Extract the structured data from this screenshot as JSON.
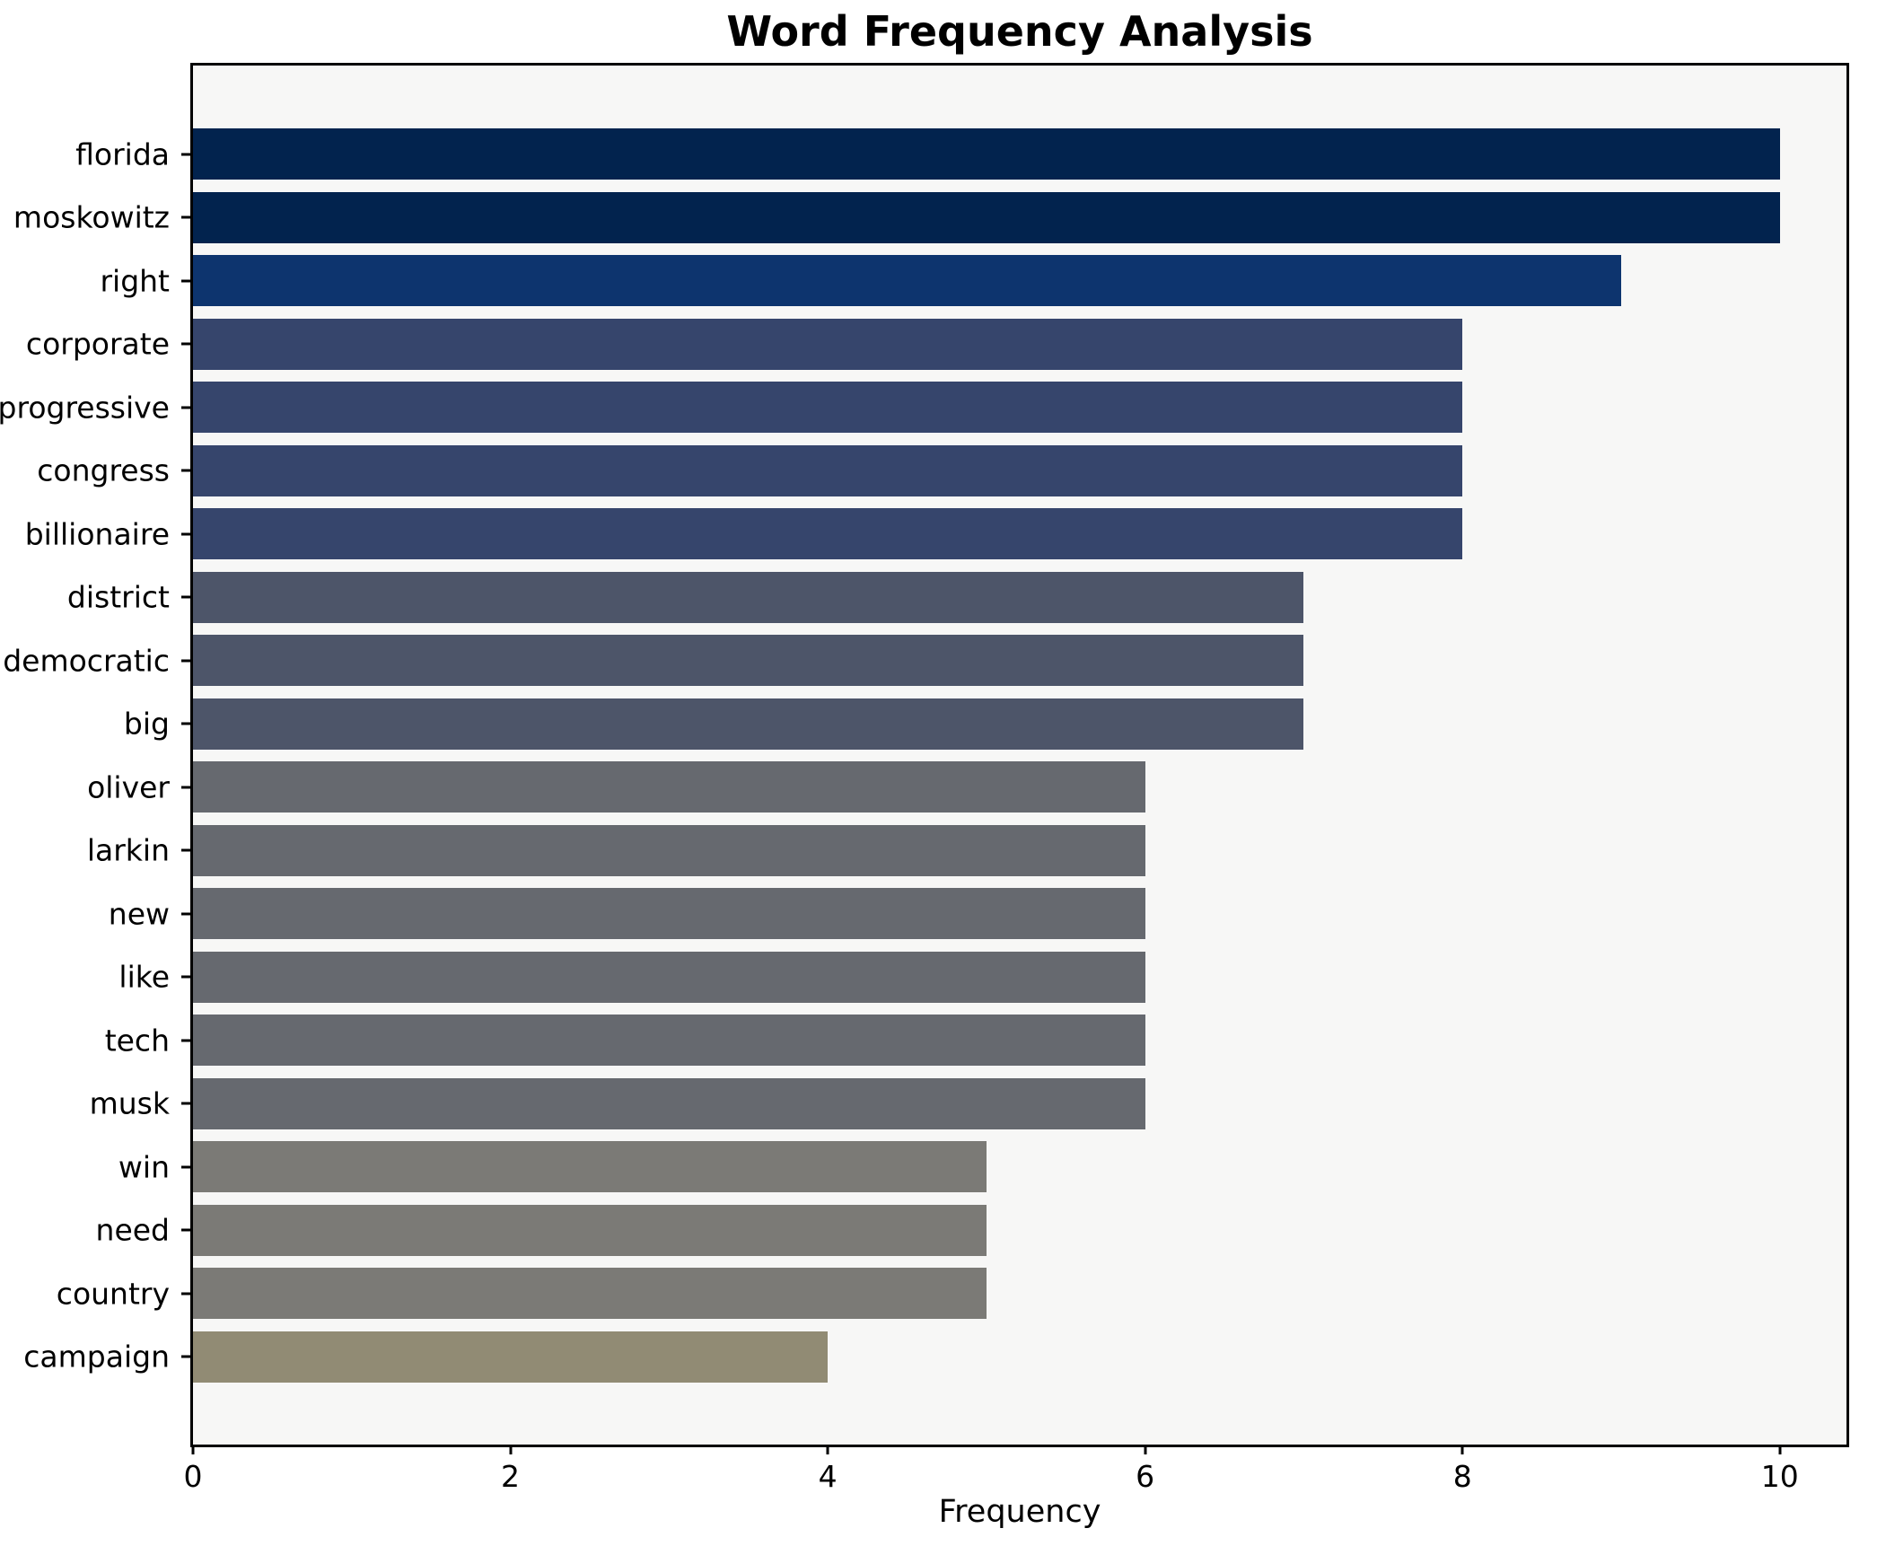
{
  "chart_data": {
    "type": "bar",
    "orientation": "horizontal",
    "title": "Word Frequency Analysis",
    "xlabel": "Frequency",
    "ylabel": "",
    "xlim": [
      0,
      10.42
    ],
    "xticks": [
      0,
      2,
      4,
      6,
      8,
      10
    ],
    "grid": false,
    "legend": null,
    "categories": [
      "florida",
      "moskowitz",
      "right",
      "corporate",
      "progressive",
      "congress",
      "billionaire",
      "district",
      "democratic",
      "big",
      "oliver",
      "larkin",
      "new",
      "like",
      "tech",
      "musk",
      "win",
      "need",
      "country",
      "campaign"
    ],
    "values": [
      10,
      10,
      9,
      8,
      8,
      8,
      8,
      7,
      7,
      7,
      6,
      6,
      6,
      6,
      6,
      6,
      5,
      5,
      5,
      4
    ],
    "bar_colors": [
      "#02234e",
      "#02234e",
      "#0d346e",
      "#36456c",
      "#36456c",
      "#36456c",
      "#36456c",
      "#4d5569",
      "#4d5569",
      "#4d5569",
      "#66696f",
      "#66696f",
      "#66696f",
      "#66696f",
      "#66696f",
      "#66696f",
      "#7b7a76",
      "#7b7a76",
      "#7b7a76",
      "#918b74"
    ],
    "colors": {
      "plot_background": "#f7f7f6",
      "figure_background": "#ffffff",
      "axis": "#000000",
      "text": "#000000"
    }
  }
}
